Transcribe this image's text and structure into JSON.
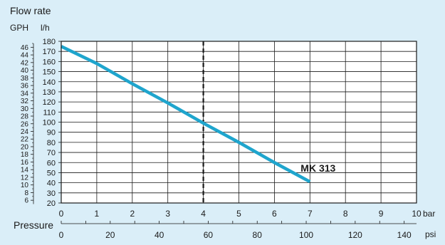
{
  "chart_data": {
    "type": "line",
    "title": "Flow rate",
    "left_unit": "GPH",
    "right_unit": "l/h",
    "x_unit": "bar",
    "secondary_x_title": "Pressure",
    "secondary_x_unit": "psi",
    "xlim": [
      0,
      10
    ],
    "ylim": [
      20,
      180
    ],
    "x_ticks": [
      "0",
      "1",
      "2",
      "3",
      "4",
      "5",
      "6",
      "7",
      "8",
      "9",
      "10"
    ],
    "y_ticks": [
      "20",
      "30",
      "40",
      "50",
      "60",
      "70",
      "80",
      "90",
      "100",
      "110",
      "120",
      "130",
      "140",
      "150",
      "160",
      "170",
      "180"
    ],
    "gph_ticks": [
      "6",
      "8",
      "10",
      "12",
      "14",
      "16",
      "18",
      "20",
      "22",
      "24",
      "26",
      "28",
      "30",
      "32",
      "34",
      "36",
      "38",
      "40",
      "42",
      "44",
      "46"
    ],
    "psi_ticks": [
      "0",
      "20",
      "40",
      "60",
      "80",
      "100",
      "120",
      "140"
    ],
    "reference_line_x": 4,
    "grid": true,
    "series": [
      {
        "name": "MK 313",
        "color": "#1fa5cd",
        "x": [
          0,
          1,
          2,
          3,
          4,
          5,
          6,
          7
        ],
        "y": [
          175,
          158,
          138,
          119,
          99,
          80,
          60,
          41
        ]
      }
    ]
  }
}
